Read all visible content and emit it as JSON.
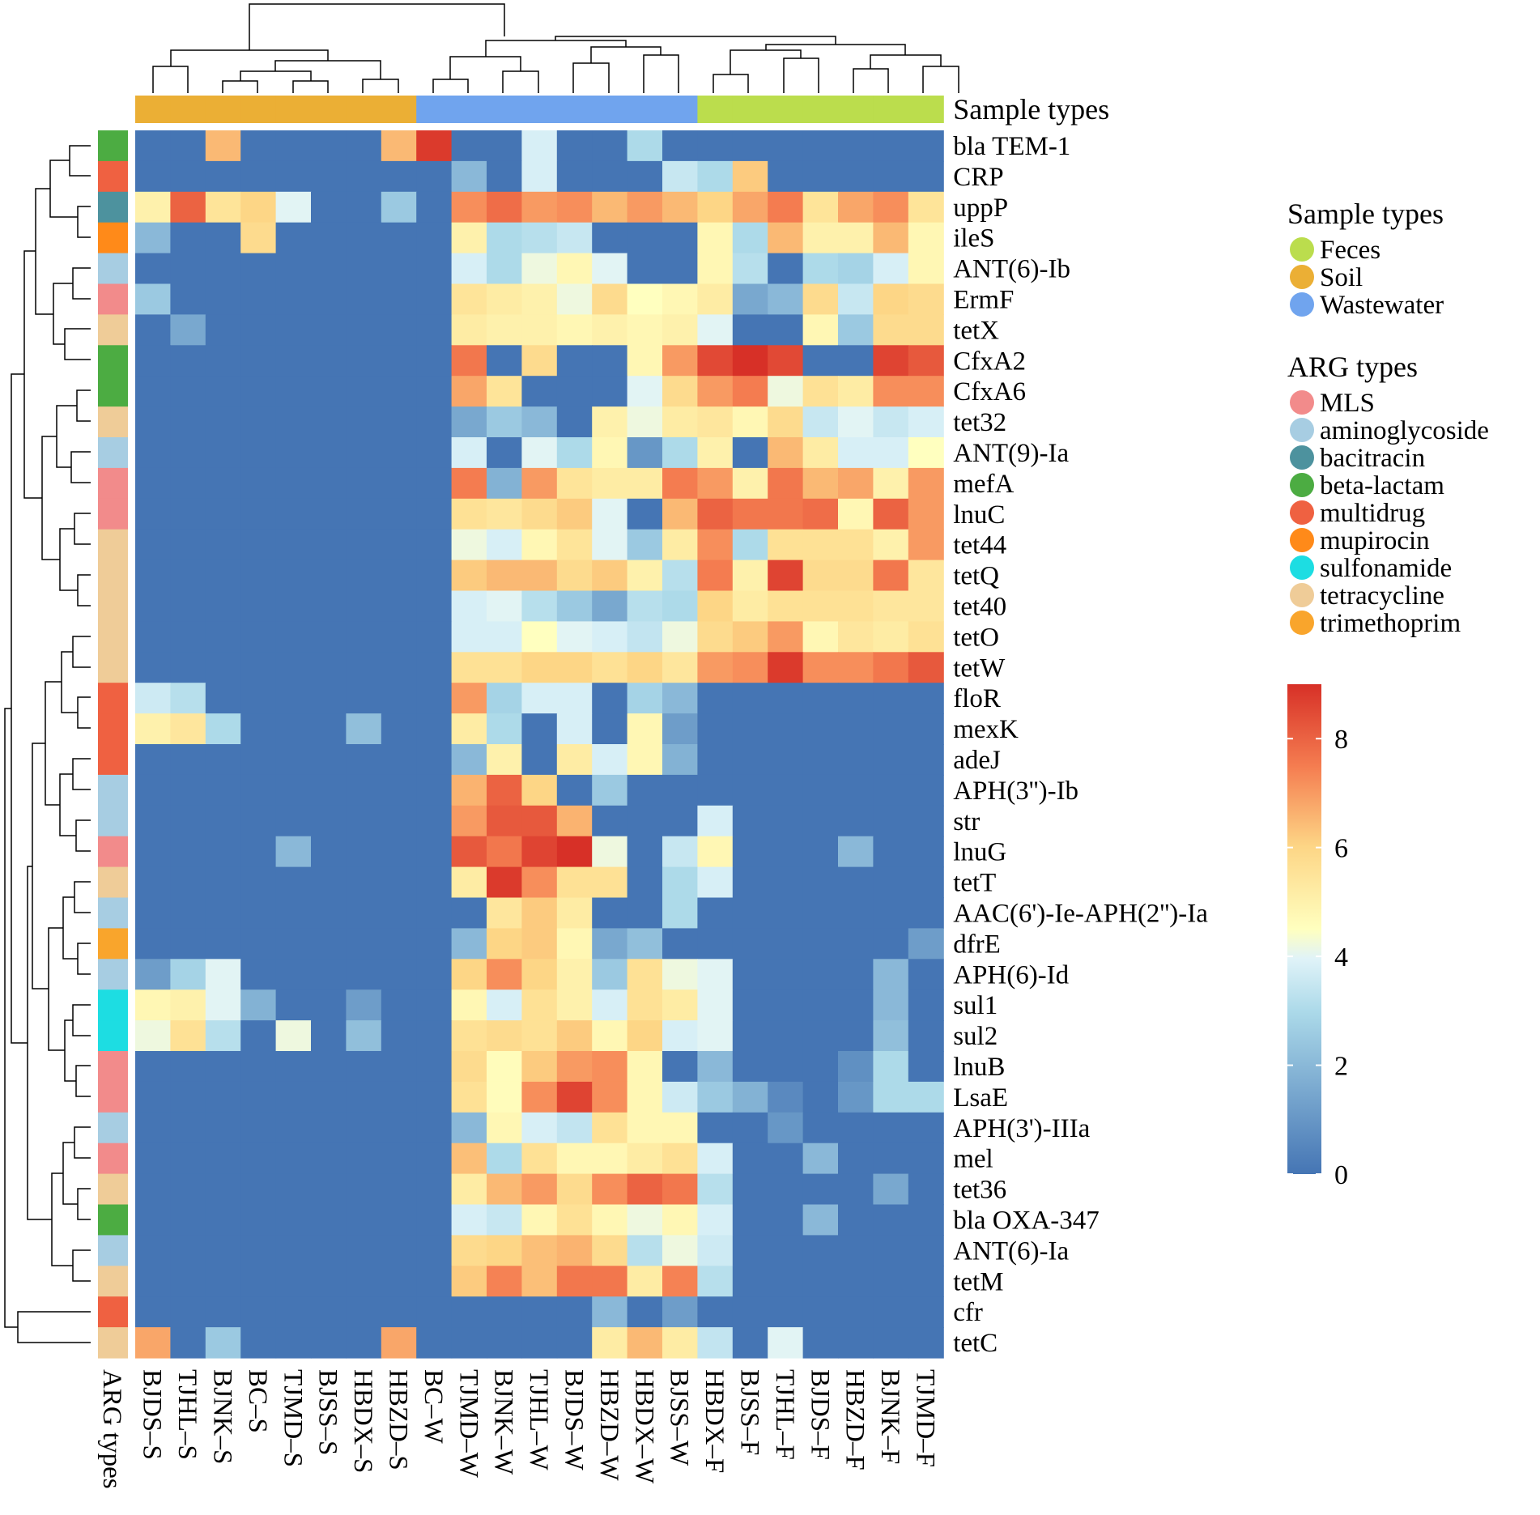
{
  "chart_data": {
    "type": "heatmap",
    "row_annotation_label": "ARG types",
    "column_annotation_label": "Sample types",
    "columns": [
      {
        "name": "BJDS–S",
        "type": "Soil"
      },
      {
        "name": "TJHL–S",
        "type": "Soil"
      },
      {
        "name": "BJNK–S",
        "type": "Soil"
      },
      {
        "name": "BC–S",
        "type": "Soil"
      },
      {
        "name": "TJMD–S",
        "type": "Soil"
      },
      {
        "name": "BJSS–S",
        "type": "Soil"
      },
      {
        "name": "HBDX–S",
        "type": "Soil"
      },
      {
        "name": "HBZD–S",
        "type": "Soil"
      },
      {
        "name": "BC–W",
        "type": "Wastewater"
      },
      {
        "name": "TJMD–W",
        "type": "Wastewater"
      },
      {
        "name": "BJNK–W",
        "type": "Wastewater"
      },
      {
        "name": "TJHL–W",
        "type": "Wastewater"
      },
      {
        "name": "BJDS–W",
        "type": "Wastewater"
      },
      {
        "name": "HBZD–W",
        "type": "Wastewater"
      },
      {
        "name": "HBDX–W",
        "type": "Wastewater"
      },
      {
        "name": "BJSS–W",
        "type": "Wastewater"
      },
      {
        "name": "HBDX–F",
        "type": "Feces"
      },
      {
        "name": "BJSS–F",
        "type": "Feces"
      },
      {
        "name": "TJHL–F",
        "type": "Feces"
      },
      {
        "name": "BJDS–F",
        "type": "Feces"
      },
      {
        "name": "HBZD–F",
        "type": "Feces"
      },
      {
        "name": "BJNK–F",
        "type": "Feces"
      },
      {
        "name": "TJMD–F",
        "type": "Feces"
      }
    ],
    "rows": [
      {
        "gene": "bla TEM-1",
        "arg_type": "beta-lactam",
        "values": [
          0,
          0,
          6.5,
          0,
          0,
          0,
          0,
          6.5,
          8.8,
          0,
          0,
          3.8,
          0,
          0,
          3,
          0,
          0,
          0,
          0,
          0,
          0,
          0,
          0
        ]
      },
      {
        "gene": "CRP",
        "arg_type": "multidrug",
        "values": [
          0,
          0,
          0,
          0,
          0,
          0,
          0,
          0,
          0,
          2,
          0,
          3.8,
          0,
          0,
          0,
          3.5,
          3,
          6.2,
          0,
          0,
          0,
          0,
          0
        ]
      },
      {
        "gene": "uppP",
        "arg_type": "bacitracin",
        "values": [
          5,
          8,
          5.5,
          6,
          4,
          0,
          0,
          2.5,
          0,
          7.2,
          7.8,
          7,
          7.2,
          6.5,
          7,
          6.5,
          6,
          6.8,
          7.5,
          5.5,
          6.8,
          7.2,
          5.5
        ]
      },
      {
        "gene": "ileS",
        "arg_type": "mupirocin",
        "values": [
          2,
          0,
          0,
          5.8,
          0,
          0,
          0,
          0,
          0,
          5,
          3,
          3.2,
          3.5,
          0,
          0,
          0,
          4.8,
          3,
          6.5,
          5,
          5,
          6.5,
          4.8
        ]
      },
      {
        "gene": "ANT(6)-Ib",
        "arg_type": "aminoglycoside",
        "values": [
          0,
          0,
          0,
          0,
          0,
          0,
          0,
          0,
          0,
          3.8,
          3,
          4.2,
          4.8,
          4,
          0,
          0,
          4.8,
          3.2,
          0,
          3,
          2.8,
          3.8,
          4.8
        ]
      },
      {
        "gene": "ErmF",
        "arg_type": "MLS",
        "values": [
          2.5,
          0,
          0,
          0,
          0,
          0,
          0,
          0,
          0,
          5.5,
          5.2,
          5,
          4.2,
          5.8,
          4.5,
          4.8,
          5.2,
          1.5,
          2,
          5.8,
          3.5,
          6,
          5.8
        ]
      },
      {
        "gene": "tetX",
        "arg_type": "tetracycline",
        "values": [
          0,
          1.5,
          0,
          0,
          0,
          0,
          0,
          0,
          0,
          5.2,
          5,
          5,
          4.8,
          5,
          4.8,
          5,
          4,
          0,
          0,
          4.8,
          2.5,
          5.8,
          5.8
        ]
      },
      {
        "gene": "CfxA2",
        "arg_type": "beta-lactam",
        "values": [
          0,
          0,
          0,
          0,
          0,
          0,
          0,
          0,
          0,
          7.6,
          0,
          5.8,
          0,
          0,
          4.8,
          7,
          8.5,
          9,
          8.5,
          0,
          0,
          8.6,
          8.2
        ]
      },
      {
        "gene": "CfxA6",
        "arg_type": "beta-lactam",
        "values": [
          0,
          0,
          0,
          0,
          0,
          0,
          0,
          0,
          0,
          6.8,
          5.5,
          0,
          0,
          0,
          4,
          5.8,
          7,
          7.5,
          4.2,
          5.6,
          5.2,
          7.2,
          7.2
        ]
      },
      {
        "gene": "tet32",
        "arg_type": "tetracycline",
        "values": [
          0,
          0,
          0,
          0,
          0,
          0,
          0,
          0,
          0,
          1.5,
          2.5,
          2,
          0,
          5,
          4.2,
          5.2,
          5.4,
          4.8,
          5.8,
          3.5,
          4,
          3.5,
          3.8
        ]
      },
      {
        "gene": "ANT(9)-Ia",
        "arg_type": "aminoglycoside",
        "values": [
          0,
          0,
          0,
          0,
          0,
          0,
          0,
          0,
          0,
          3.8,
          0,
          4,
          3,
          4.8,
          1,
          3,
          5,
          0,
          6.5,
          5.2,
          3.8,
          3.8,
          4.5
        ]
      },
      {
        "gene": "mefA",
        "arg_type": "MLS",
        "values": [
          0,
          0,
          0,
          0,
          0,
          0,
          0,
          0,
          0,
          7.5,
          1.8,
          7,
          5.5,
          5.2,
          5.2,
          7.5,
          7,
          5,
          7.6,
          6.5,
          6.8,
          5,
          7
        ]
      },
      {
        "gene": "lnuC",
        "arg_type": "MLS",
        "values": [
          0,
          0,
          0,
          0,
          0,
          0,
          0,
          0,
          0,
          5.6,
          5.4,
          5.8,
          6.2,
          4,
          0,
          6.5,
          8,
          7.6,
          7.6,
          7.8,
          4.8,
          8,
          7
        ]
      },
      {
        "gene": "tet44",
        "arg_type": "tetracycline",
        "values": [
          0,
          0,
          0,
          0,
          0,
          0,
          0,
          0,
          0,
          4.2,
          3.8,
          4.8,
          5.5,
          4,
          2.5,
          5.2,
          7.2,
          3,
          5.6,
          5.6,
          5.6,
          5,
          7
        ]
      },
      {
        "gene": "tetQ",
        "arg_type": "tetracycline",
        "values": [
          0,
          0,
          0,
          0,
          0,
          0,
          0,
          0,
          0,
          6.2,
          6.5,
          6.5,
          5.8,
          6.2,
          5,
          3.2,
          7.5,
          5,
          8.6,
          5.8,
          5.8,
          7.6,
          5.4
        ]
      },
      {
        "gene": "tet40",
        "arg_type": "tetracycline",
        "values": [
          0,
          0,
          0,
          0,
          0,
          0,
          0,
          0,
          0,
          3.8,
          4,
          3.2,
          2.5,
          1.5,
          3.2,
          3,
          6,
          5.2,
          5.6,
          5.6,
          5.6,
          5.4,
          5.4
        ]
      },
      {
        "gene": "tetO",
        "arg_type": "tetracycline",
        "values": [
          0,
          0,
          0,
          0,
          0,
          0,
          0,
          0,
          0,
          3.8,
          3.8,
          4.5,
          4,
          3.8,
          3.4,
          4.2,
          5.8,
          6.2,
          7,
          4.8,
          5.4,
          5.2,
          5.6
        ]
      },
      {
        "gene": "tetW",
        "arg_type": "tetracycline",
        "values": [
          0,
          0,
          0,
          0,
          0,
          0,
          0,
          0,
          0,
          5.6,
          5.6,
          6,
          6,
          5.6,
          6,
          5.4,
          7,
          7.2,
          8.8,
          7.2,
          7.2,
          7.6,
          8.2
        ]
      },
      {
        "gene": "floR",
        "arg_type": "multidrug",
        "values": [
          3.6,
          3.2,
          0,
          0,
          0,
          0,
          0,
          0,
          0,
          7,
          2.8,
          3.8,
          3.8,
          0,
          2.8,
          2,
          0,
          0,
          0,
          0,
          0,
          0,
          0
        ]
      },
      {
        "gene": "mexK",
        "arg_type": "multidrug",
        "values": [
          5,
          5.4,
          3,
          0,
          0,
          0,
          2.2,
          0,
          0,
          5.2,
          3,
          0,
          3.8,
          0,
          4.8,
          1.2,
          0,
          0,
          0,
          0,
          0,
          0,
          0
        ]
      },
      {
        "gene": "adeJ",
        "arg_type": "multidrug",
        "values": [
          0,
          0,
          0,
          0,
          0,
          0,
          0,
          0,
          0,
          2,
          5,
          0,
          5.2,
          3.8,
          4.8,
          1.8,
          0,
          0,
          0,
          0,
          0,
          0,
          0
        ]
      },
      {
        "gene": "APH(3'')-Ib",
        "arg_type": "aminoglycoside",
        "values": [
          0,
          0,
          0,
          0,
          0,
          0,
          0,
          0,
          0,
          6.6,
          8,
          6,
          0,
          2.5,
          0,
          0,
          0,
          0,
          0,
          0,
          0,
          0,
          0
        ]
      },
      {
        "gene": "str",
        "arg_type": "aminoglycoside",
        "values": [
          0,
          0,
          0,
          0,
          0,
          0,
          0,
          0,
          0,
          7,
          8.2,
          8.2,
          6.6,
          0,
          0,
          0,
          3.8,
          0,
          0,
          0,
          0,
          0,
          0
        ]
      },
      {
        "gene": "lnuG",
        "arg_type": "MLS",
        "values": [
          0,
          0,
          0,
          0,
          2,
          0,
          0,
          0,
          0,
          8.2,
          7.6,
          8.6,
          9,
          4.2,
          0,
          3.5,
          4.8,
          0,
          0,
          0,
          2,
          0,
          0
        ]
      },
      {
        "gene": "tetT",
        "arg_type": "tetracycline",
        "values": [
          0,
          0,
          0,
          0,
          0,
          0,
          0,
          0,
          0,
          5.2,
          8.8,
          7.2,
          5.6,
          5.6,
          0,
          3,
          3.8,
          0,
          0,
          0,
          0,
          0,
          0
        ]
      },
      {
        "gene": "AAC(6')-Ie-APH(2'')-Ia",
        "arg_type": "aminoglycoside",
        "values": [
          0,
          0,
          0,
          0,
          0,
          0,
          0,
          0,
          0,
          0,
          5.4,
          6.2,
          5.2,
          0,
          0,
          3,
          0,
          0,
          0,
          0,
          0,
          0,
          0
        ]
      },
      {
        "gene": "dfrE",
        "arg_type": "trimethoprim",
        "values": [
          0,
          0,
          0,
          0,
          0,
          0,
          0,
          0,
          0,
          2,
          6,
          6.2,
          4.8,
          1.5,
          2.2,
          0,
          0,
          0,
          0,
          0,
          0,
          0,
          1.2
        ]
      },
      {
        "gene": "APH(6)-Id",
        "arg_type": "aminoglycoside",
        "values": [
          1.2,
          2.8,
          4,
          0,
          0,
          0,
          0,
          0,
          0,
          6,
          7.2,
          6,
          5,
          2.5,
          5.6,
          4.2,
          4,
          0,
          0,
          0,
          0,
          2,
          0
        ]
      },
      {
        "gene": "sul1",
        "arg_type": "sulfonamide",
        "values": [
          4.8,
          5,
          4,
          1.8,
          0,
          0,
          1.2,
          0,
          0,
          4.8,
          3.8,
          5.6,
          5,
          3.8,
          5.6,
          5.2,
          4,
          0,
          0,
          0,
          0,
          2,
          0
        ]
      },
      {
        "gene": "sul2",
        "arg_type": "sulfonamide",
        "values": [
          4.2,
          5.6,
          3.2,
          0,
          4.2,
          0,
          2.2,
          0,
          0,
          5.6,
          5.8,
          5.6,
          6.2,
          4.8,
          6,
          3.8,
          4,
          0,
          0,
          0,
          0,
          2.2,
          0
        ]
      },
      {
        "gene": "lnuB",
        "arg_type": "MLS",
        "values": [
          0,
          0,
          0,
          0,
          0,
          0,
          0,
          0,
          0,
          5.8,
          4.6,
          6.2,
          7,
          7.2,
          4.8,
          0,
          2,
          0,
          0,
          0,
          0.8,
          3,
          0
        ]
      },
      {
        "gene": "LsaE",
        "arg_type": "MLS",
        "values": [
          0,
          0,
          0,
          0,
          0,
          0,
          0,
          0,
          0,
          5.6,
          4.6,
          7.2,
          8.6,
          7.2,
          4.8,
          3.6,
          2.5,
          1.8,
          0.6,
          0,
          1,
          3,
          3
        ]
      },
      {
        "gene": "APH(3')-IIIa",
        "arg_type": "aminoglycoside",
        "values": [
          0,
          0,
          0,
          0,
          0,
          0,
          0,
          0,
          0,
          2,
          4.8,
          3.8,
          3.4,
          5.6,
          4.8,
          4.8,
          0,
          0,
          1,
          0,
          0,
          0,
          0
        ]
      },
      {
        "gene": "mel",
        "arg_type": "MLS",
        "values": [
          0,
          0,
          0,
          0,
          0,
          0,
          0,
          0,
          0,
          6.4,
          3,
          5.6,
          4.8,
          4.8,
          5.2,
          5.6,
          3.8,
          0,
          0,
          2,
          0,
          0,
          0
        ]
      },
      {
        "gene": "tet36",
        "arg_type": "tetracycline",
        "values": [
          0,
          0,
          0,
          0,
          0,
          0,
          0,
          0,
          0,
          5.2,
          6.5,
          7,
          5.8,
          7.2,
          8,
          7.6,
          3.2,
          0,
          0,
          0,
          0,
          1.5,
          0
        ]
      },
      {
        "gene": "bla OXA-347",
        "arg_type": "beta-lactam",
        "values": [
          0,
          0,
          0,
          0,
          0,
          0,
          0,
          0,
          0,
          3.8,
          3.5,
          4.8,
          5.6,
          4.8,
          4.2,
          4.8,
          3.8,
          0,
          0,
          2,
          0,
          0,
          0
        ]
      },
      {
        "gene": "ANT(6)-Ia",
        "arg_type": "aminoglycoside",
        "values": [
          0,
          0,
          0,
          0,
          0,
          0,
          0,
          0,
          0,
          5.8,
          6,
          6.4,
          6.6,
          5.8,
          3.2,
          4.2,
          3.6,
          0,
          0,
          0,
          0,
          0,
          0
        ]
      },
      {
        "gene": "tetM",
        "arg_type": "tetracycline",
        "values": [
          0,
          0,
          0,
          0,
          0,
          0,
          0,
          0,
          0,
          6.2,
          7.4,
          6.4,
          7.6,
          7.6,
          5.2,
          7.4,
          3.2,
          0,
          0,
          0,
          0,
          0,
          0
        ]
      },
      {
        "gene": "cfr",
        "arg_type": "multidrug",
        "values": [
          0,
          0,
          0,
          0,
          0,
          0,
          0,
          0,
          0,
          0,
          0,
          0,
          0,
          2,
          0,
          1.2,
          0,
          0,
          0,
          0,
          0,
          0,
          0
        ]
      },
      {
        "gene": "tetC",
        "arg_type": "tetracycline",
        "values": [
          6.8,
          0,
          2.5,
          0,
          0,
          0,
          0,
          6.8,
          0,
          0,
          0,
          0,
          0,
          5.2,
          6.5,
          5.2,
          3.4,
          0,
          4,
          0,
          0,
          0,
          0
        ]
      }
    ],
    "colorbar": {
      "min": 0,
      "max": 9,
      "ticks": [
        0,
        2,
        4,
        6,
        8
      ]
    },
    "legends": {
      "sample_types": {
        "title": "Sample types",
        "items": [
          {
            "label": "Feces",
            "color": "#bbdd4d"
          },
          {
            "label": "Soil",
            "color": "#ebaf35"
          },
          {
            "label": "Wastewater",
            "color": "#70a4ee"
          }
        ]
      },
      "arg_types": {
        "title": "ARG types",
        "items": [
          {
            "label": "MLS",
            "color": "#f28b8b"
          },
          {
            "label": "aminoglycoside",
            "color": "#a7cde2"
          },
          {
            "label": "bacitracin",
            "color": "#4d929e"
          },
          {
            "label": "beta-lactam",
            "color": "#4cac42"
          },
          {
            "label": "multidrug",
            "color": "#ef6141"
          },
          {
            "label": "mupirocin",
            "color": "#ff8a19"
          },
          {
            "label": "sulfonamide",
            "color": "#1ddde2"
          },
          {
            "label": "tetracycline",
            "color": "#efcc98"
          },
          {
            "label": "trimethoprim",
            "color": "#f9a52c"
          }
        ]
      }
    }
  }
}
